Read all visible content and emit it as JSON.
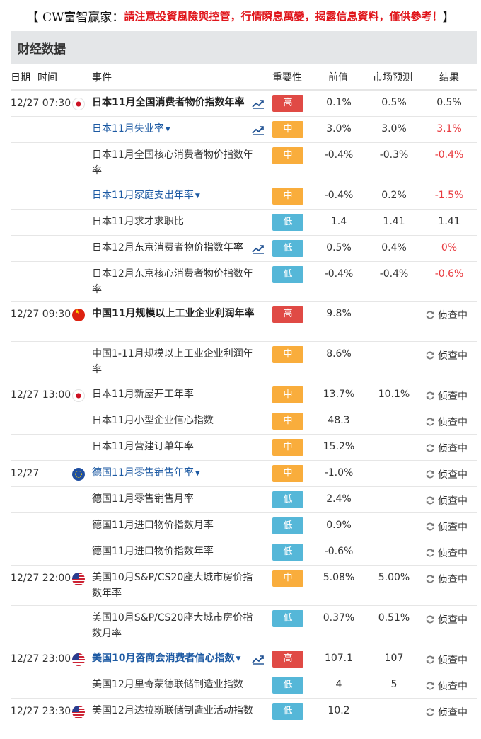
{
  "banner": {
    "prefix": "【 CW富智贏家：",
    "warning": "請注意投資風險與控管，行情瞬息萬變，揭露信息資料，僅供參考！",
    "suffix": "】"
  },
  "panel": {
    "title": "财经数据"
  },
  "columns": {
    "date": "日期",
    "time": "时间",
    "event": "事件",
    "importance": "重要性",
    "previous": "前值",
    "forecast": "市场预测",
    "result": "结果"
  },
  "pending_label": "侦查中",
  "groups": [
    {
      "time": "12/27 07:30",
      "flag": "jp",
      "rows": [
        {
          "event": "日本11月全国消费者物价指数年率",
          "style": "bold",
          "caret": false,
          "chart": true,
          "importance": "高",
          "level": "high",
          "previous": "0.1%",
          "forecast": "0.5%",
          "result": "0.5%",
          "result_color": "normal",
          "height": 37
        },
        {
          "event": "日本11月失业率",
          "style": "link",
          "caret": true,
          "chart": true,
          "importance": "中",
          "level": "mid",
          "previous": "3.0%",
          "forecast": "3.0%",
          "result": "3.1%",
          "result_color": "red",
          "height": 37
        },
        {
          "event": "日本11月全国核心消费者物价指数年率",
          "style": "normal",
          "caret": false,
          "chart": false,
          "importance": "中",
          "level": "mid",
          "previous": "-0.4%",
          "forecast": "-0.3%",
          "result": "-0.4%",
          "result_color": "red",
          "height": 57
        },
        {
          "event": "日本11月家庭支出年率",
          "style": "link",
          "caret": true,
          "chart": false,
          "importance": "中",
          "level": "mid",
          "previous": "-0.4%",
          "forecast": "0.2%",
          "result": "-1.5%",
          "result_color": "red",
          "height": 37
        },
        {
          "event": "日本11月求才求职比",
          "style": "normal",
          "caret": false,
          "chart": false,
          "importance": "低",
          "level": "low",
          "previous": "1.4",
          "forecast": "1.41",
          "result": "1.41",
          "result_color": "normal",
          "height": 37
        },
        {
          "event": "日本12月东京消费者物价指数年率",
          "style": "normal",
          "caret": false,
          "chart": true,
          "importance": "低",
          "level": "low",
          "previous": "0.5%",
          "forecast": "0.4%",
          "result": "0%",
          "result_color": "red",
          "height": 37
        },
        {
          "event": "日本12月东京核心消费者物价指数年率",
          "style": "normal",
          "caret": false,
          "chart": false,
          "importance": "低",
          "level": "low",
          "previous": "-0.4%",
          "forecast": "-0.4%",
          "result": "-0.6%",
          "result_color": "red",
          "height": 56
        }
      ]
    },
    {
      "time": "12/27 09:30",
      "flag": "cn",
      "rows": [
        {
          "event": "中国11月规模以上工业企业利润年率",
          "style": "bold",
          "caret": false,
          "chart": false,
          "importance": "高",
          "level": "high",
          "previous": "9.8%",
          "forecast": "",
          "result": "",
          "result_color": "pending",
          "height": 57
        },
        {
          "event": "中国1-11月规模以上工业企业利润年率",
          "style": "normal",
          "caret": false,
          "chart": false,
          "importance": "中",
          "level": "mid",
          "previous": "8.6%",
          "forecast": "",
          "result": "",
          "result_color": "pending",
          "height": 57
        }
      ]
    },
    {
      "time": "12/27 13:00",
      "flag": "jp",
      "rows": [
        {
          "event": "日本11月新屋开工年率",
          "style": "normal",
          "caret": false,
          "chart": false,
          "importance": "中",
          "level": "mid",
          "previous": "13.7%",
          "forecast": "10.1%",
          "result": "",
          "result_color": "pending",
          "height": 37
        },
        {
          "event": "日本11月小型企业信心指数",
          "style": "normal",
          "caret": false,
          "chart": false,
          "importance": "中",
          "level": "mid",
          "previous": "48.3",
          "forecast": "",
          "result": "",
          "result_color": "pending",
          "height": 37
        },
        {
          "event": "日本11月营建订单年率",
          "style": "normal",
          "caret": false,
          "chart": false,
          "importance": "中",
          "level": "mid",
          "previous": "15.2%",
          "forecast": "",
          "result": "",
          "result_color": "pending",
          "height": 37
        }
      ]
    },
    {
      "time": "12/27",
      "flag": "eu",
      "rows": [
        {
          "event": "德国11月零售销售年率",
          "style": "link",
          "caret": true,
          "chart": false,
          "importance": "中",
          "level": "mid",
          "previous": "-1.0%",
          "forecast": "",
          "result": "",
          "result_color": "pending",
          "height": 37
        },
        {
          "event": "德国11月零售销售月率",
          "style": "normal",
          "caret": false,
          "chart": false,
          "importance": "低",
          "level": "low",
          "previous": "2.4%",
          "forecast": "",
          "result": "",
          "result_color": "pending",
          "height": 37
        },
        {
          "event": "德国11月进口物价指数月率",
          "style": "normal",
          "caret": false,
          "chart": false,
          "importance": "低",
          "level": "low",
          "previous": "0.9%",
          "forecast": "",
          "result": "",
          "result_color": "pending",
          "height": 37
        },
        {
          "event": "德国11月进口物价指数年率",
          "style": "normal",
          "caret": false,
          "chart": false,
          "importance": "低",
          "level": "low",
          "previous": "-0.6%",
          "forecast": "",
          "result": "",
          "result_color": "pending",
          "height": 37
        }
      ]
    },
    {
      "time": "12/27 22:00",
      "flag": "us",
      "rows": [
        {
          "event": "美国10月S&P/CS20座大城市房价指数年率",
          "style": "normal",
          "caret": false,
          "chart": false,
          "importance": "中",
          "level": "mid",
          "previous": "5.08%",
          "forecast": "5.00%",
          "result": "",
          "result_color": "pending",
          "height": 57
        },
        {
          "event": "美国10月S&P/CS20座大城市房价指数月率",
          "style": "normal",
          "caret": false,
          "chart": false,
          "importance": "低",
          "level": "low",
          "previous": "0.37%",
          "forecast": "0.51%",
          "result": "",
          "result_color": "pending",
          "height": 57
        }
      ]
    },
    {
      "time": "12/27 23:00",
      "flag": "us",
      "rows": [
        {
          "event": "美国10月咨商会消费者信心指数",
          "style": "bold-link",
          "caret": true,
          "chart": true,
          "importance": "高",
          "level": "high",
          "previous": "107.1",
          "forecast": "107",
          "result": "",
          "result_color": "pending",
          "height": 37
        },
        {
          "event": "美国12月里奇蒙德联储制造业指数",
          "style": "normal",
          "caret": false,
          "chart": false,
          "importance": "低",
          "level": "low",
          "previous": "4",
          "forecast": "5",
          "result": "",
          "result_color": "pending",
          "height": 37
        }
      ]
    },
    {
      "time": "12/27 23:30",
      "flag": "us",
      "rows": [
        {
          "event": "美国12月达拉斯联储制造业活动指数",
          "style": "normal",
          "caret": false,
          "chart": false,
          "importance": "低",
          "level": "low",
          "previous": "10.2",
          "forecast": "",
          "result": "",
          "result_color": "pending",
          "height": 52
        }
      ]
    }
  ]
}
